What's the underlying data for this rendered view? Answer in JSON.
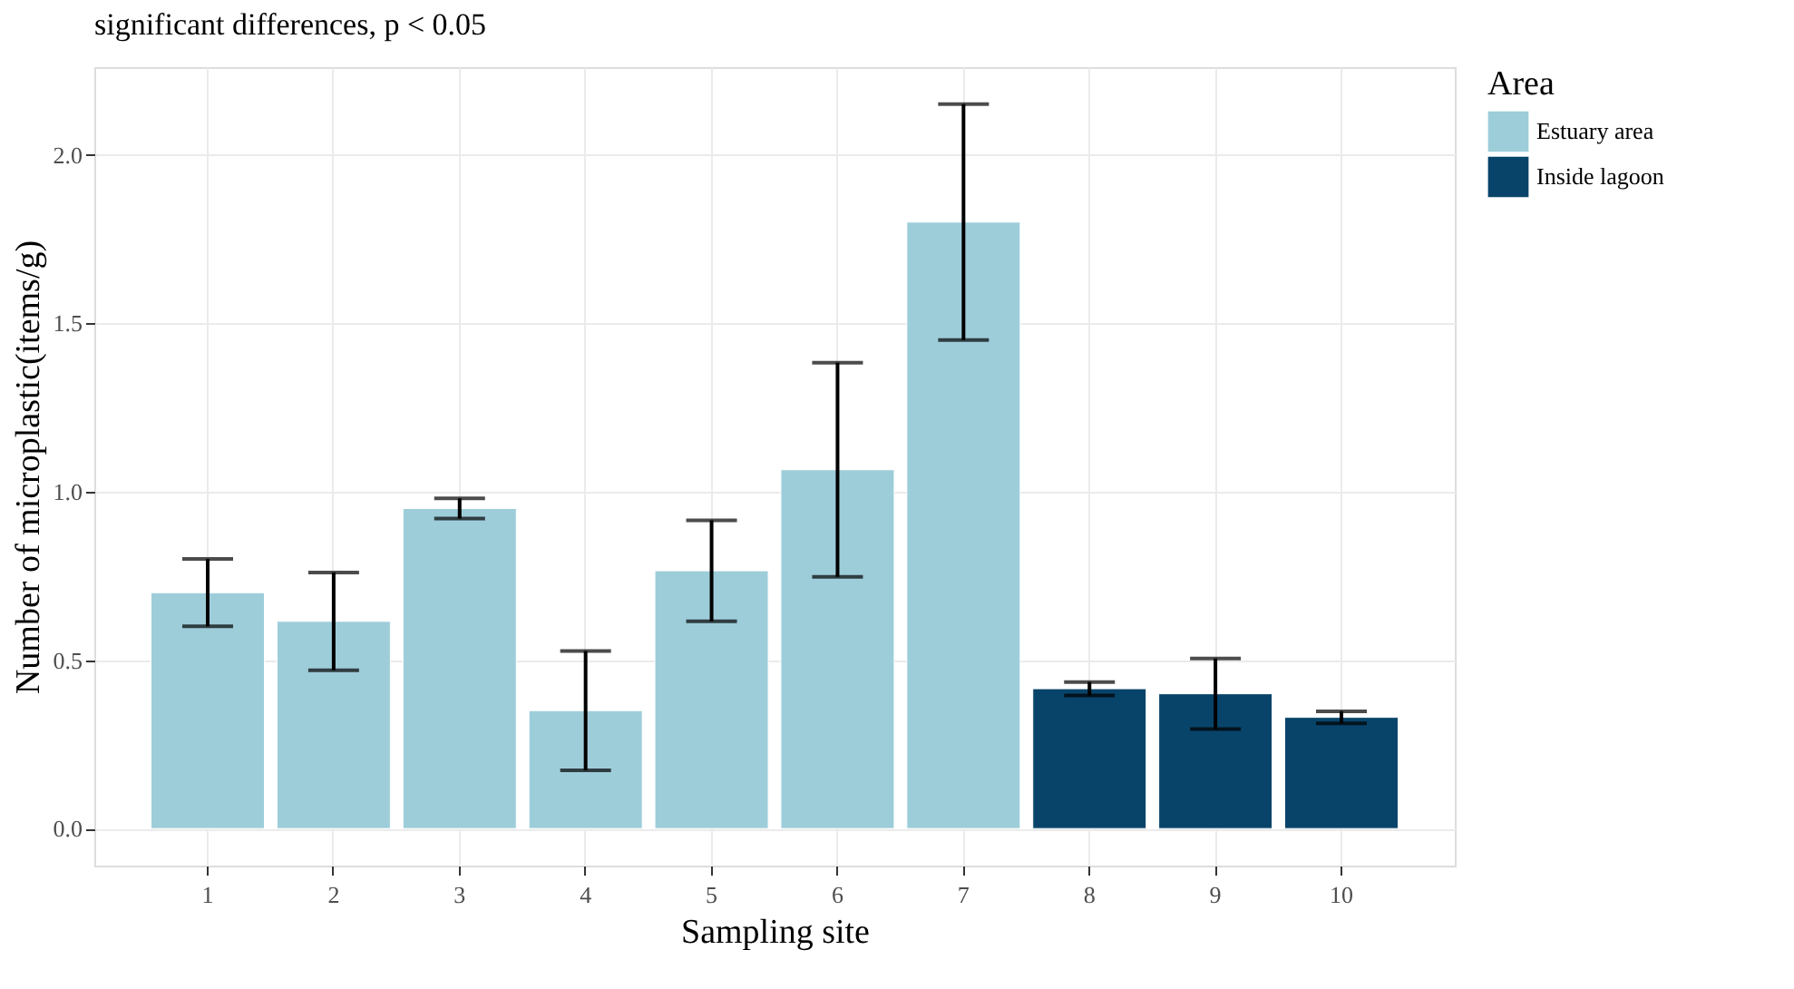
{
  "chart_data": {
    "type": "bar",
    "title": "significant differences, p < 0.05",
    "xlabel": "Sampling site",
    "ylabel": "Number of microplastic(items/g)",
    "legend_title": "Area",
    "categories": [
      "1",
      "2",
      "3",
      "4",
      "5",
      "6",
      "7",
      "8",
      "9",
      "10"
    ],
    "series": [
      {
        "name": "Estuary area",
        "color": "#9ecdda",
        "values": [
          0.7,
          0.615,
          0.95,
          0.35,
          0.765,
          1.065,
          1.8,
          null,
          null,
          null
        ],
        "errors": [
          0.1,
          0.145,
          0.03,
          0.177,
          0.15,
          0.318,
          0.35,
          null,
          null,
          null
        ]
      },
      {
        "name": "Inside lagoon",
        "color": "#08446a",
        "values": [
          null,
          null,
          null,
          null,
          null,
          null,
          null,
          0.415,
          0.4,
          0.33
        ],
        "errors": [
          null,
          null,
          null,
          null,
          null,
          null,
          null,
          0.02,
          0.105,
          0.018
        ]
      }
    ],
    "ylim": [
      -0.11,
      2.26
    ],
    "yticks": [
      {
        "value": 0,
        "label": "0.0"
      },
      0.5,
      {
        "value": 1,
        "label": "1.0"
      },
      1.5,
      {
        "value": 2,
        "label": "2.0"
      }
    ],
    "grid": true,
    "legend": "right"
  }
}
